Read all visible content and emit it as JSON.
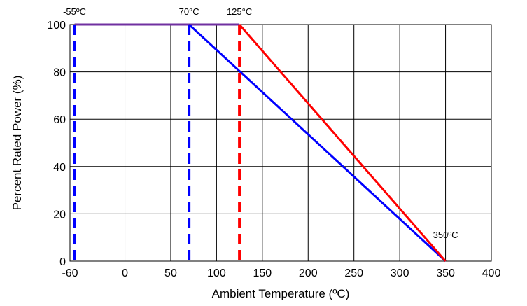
{
  "chart_data": {
    "type": "line",
    "title": "",
    "xlabel": "Ambient Temperature (ºC)",
    "ylabel": "Percent Rated Power (%)",
    "xlim": [
      -60,
      400
    ],
    "ylim": [
      0,
      100
    ],
    "x_ticks": [
      -60,
      0,
      50,
      100,
      150,
      200,
      250,
      300,
      350,
      400
    ],
    "y_ticks": [
      0,
      20,
      40,
      60,
      80,
      100
    ],
    "grid": true,
    "legend": "none",
    "series": [
      {
        "color": "#7030a0",
        "style": "solid",
        "x": [
          -55,
          125
        ],
        "y": [
          100,
          100
        ]
      },
      {
        "color": "#0000ff",
        "style": "solid",
        "x": [
          70,
          350
        ],
        "y": [
          100,
          0
        ]
      },
      {
        "color": "#ff0000",
        "style": "solid",
        "x": [
          125,
          350
        ],
        "y": [
          100,
          0
        ]
      }
    ],
    "vlines": [
      {
        "x": -55,
        "color": "#0000ff",
        "style": "dashed",
        "label": "-55ºC"
      },
      {
        "x": 70,
        "color": "#0000ff",
        "style": "dashed",
        "label": "70°C"
      },
      {
        "x": 125,
        "color": "#ff0000",
        "style": "dashed",
        "label": "125°C"
      }
    ],
    "annotations": [
      {
        "text": "350ºC",
        "x": 350,
        "y": 0
      }
    ]
  }
}
